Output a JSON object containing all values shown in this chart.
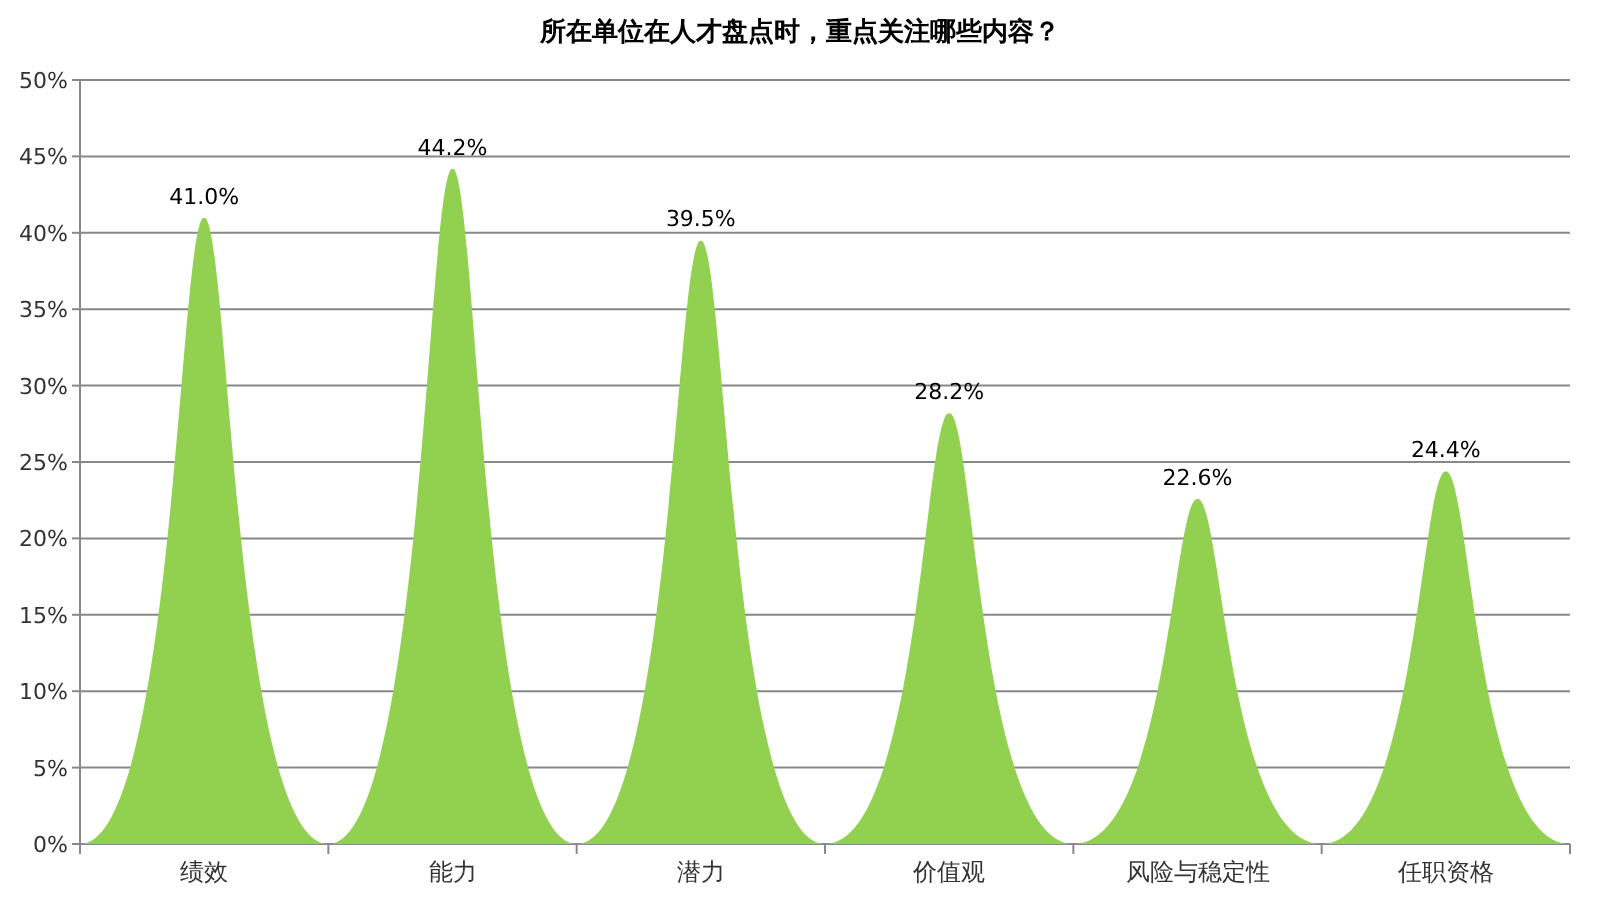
{
  "chart_data": {
    "type": "bar",
    "title": "所在单位在人才盘点时，重点关注哪些内容？",
    "categories": [
      "绩效",
      "能力",
      "潜力",
      "价值观",
      "风险与稳定性",
      "任职资格"
    ],
    "values": [
      41.0,
      44.2,
      39.5,
      28.2,
      22.6,
      24.4
    ],
    "value_labels": [
      "41.0%",
      "44.2%",
      "39.5%",
      "28.2%",
      "22.6%",
      "24.4%"
    ],
    "color": "#92d050",
    "ylim": [
      0,
      50
    ],
    "yticks": [
      {
        "value": 0,
        "label": "0%"
      },
      {
        "value": 5,
        "label": "5%"
      },
      {
        "value": 10,
        "label": "10%"
      },
      {
        "value": 15,
        "label": "15%"
      },
      {
        "value": 20,
        "label": "20%"
      },
      {
        "value": 25,
        "label": "25%"
      },
      {
        "value": 30,
        "label": "30%"
      },
      {
        "value": 35,
        "label": "35%"
      },
      {
        "value": 40,
        "label": "40%"
      },
      {
        "value": 45,
        "label": "45%"
      },
      {
        "value": 50,
        "label": "50%"
      }
    ],
    "grid": "y"
  }
}
